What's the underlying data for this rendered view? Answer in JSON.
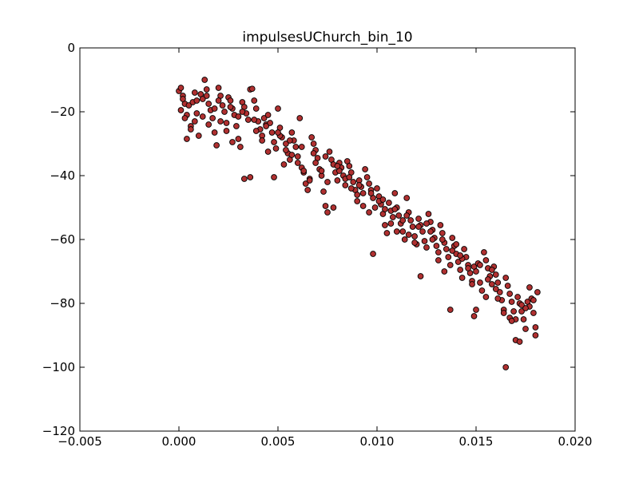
{
  "chart_data": {
    "type": "scatter",
    "title": "impulsesUChurch_bin_10",
    "xlabel": "",
    "ylabel": "",
    "xlim": [
      -0.005,
      0.02
    ],
    "ylim": [
      -120,
      0
    ],
    "xticks": [
      -0.005,
      0.0,
      0.005,
      0.01,
      0.015,
      0.02
    ],
    "xtick_labels": [
      "−0.005",
      "0.000",
      "0.005",
      "0.010",
      "0.015",
      "0.020"
    ],
    "yticks": [
      0,
      -20,
      -40,
      -60,
      -80,
      -100,
      -120
    ],
    "ytick_labels": [
      "0",
      "−20",
      "−40",
      "−60",
      "−80",
      "−100",
      "−120"
    ],
    "grid": false,
    "legend": "none",
    "marker_color": "#b03030",
    "marker_edge": "#000000",
    "series": [
      {
        "points": [
          [
            0.0,
            -13.5
          ],
          [
            0.0001,
            -12.5
          ],
          [
            0.0002,
            -15.0
          ],
          [
            0.0003,
            -17.5
          ],
          [
            0.0001,
            -19.5
          ],
          [
            0.0004,
            -21.0
          ],
          [
            0.0005,
            -18.0
          ],
          [
            0.0006,
            -24.5
          ],
          [
            0.0004,
            -28.5
          ],
          [
            0.0008,
            -23.0
          ],
          [
            0.0009,
            -20.5
          ],
          [
            0.001,
            -27.5
          ],
          [
            0.0007,
            -17.0
          ],
          [
            0.0011,
            -14.5
          ],
          [
            0.0012,
            -16.0
          ],
          [
            0.0013,
            -10.0
          ],
          [
            0.0014,
            -13.0
          ],
          [
            0.0015,
            -17.5
          ],
          [
            0.0016,
            -19.5
          ],
          [
            0.0017,
            -22.0
          ],
          [
            0.0018,
            -26.5
          ],
          [
            0.0019,
            -30.5
          ],
          [
            0.002,
            -12.5
          ],
          [
            0.0021,
            -15.0
          ],
          [
            0.0022,
            -18.0
          ],
          [
            0.0023,
            -20.0
          ],
          [
            0.0024,
            -23.5
          ],
          [
            0.0025,
            -15.5
          ],
          [
            0.0026,
            -16.5
          ],
          [
            0.0027,
            -19.0
          ],
          [
            0.0028,
            -21.0
          ],
          [
            0.0029,
            -24.5
          ],
          [
            0.003,
            -28.5
          ],
          [
            0.0031,
            -31.0
          ],
          [
            0.0032,
            -17.0
          ],
          [
            0.0033,
            -18.5
          ],
          [
            0.0034,
            -20.5
          ],
          [
            0.0035,
            -22.5
          ],
          [
            0.0036,
            -13.0
          ],
          [
            0.0037,
            -12.8
          ],
          [
            0.0038,
            -16.5
          ],
          [
            0.0039,
            -19.0
          ],
          [
            0.004,
            -23.0
          ],
          [
            0.0041,
            -25.5
          ],
          [
            0.0042,
            -27.5
          ],
          [
            0.0043,
            -22.0
          ],
          [
            0.0044,
            -24.0
          ],
          [
            0.0045,
            -21.0
          ],
          [
            0.0046,
            -23.5
          ],
          [
            0.0047,
            -26.5
          ],
          [
            0.0048,
            -29.5
          ],
          [
            0.0049,
            -31.5
          ],
          [
            0.005,
            -19.0
          ],
          [
            0.0051,
            -25.0
          ],
          [
            0.0052,
            -28.0
          ],
          [
            0.0053,
            -36.5
          ],
          [
            0.0054,
            -30.0
          ],
          [
            0.0055,
            -33.0
          ],
          [
            0.0056,
            -35.0
          ],
          [
            0.0057,
            -26.5
          ],
          [
            0.0058,
            -29.0
          ],
          [
            0.0059,
            -31.0
          ],
          [
            0.006,
            -34.0
          ],
          [
            0.0061,
            -22.0
          ],
          [
            0.0062,
            -37.5
          ],
          [
            0.0063,
            -39.0
          ],
          [
            0.0064,
            -42.5
          ],
          [
            0.0065,
            -44.5
          ],
          [
            0.0066,
            -41.0
          ],
          [
            0.0067,
            -28.0
          ],
          [
            0.0068,
            -30.0
          ],
          [
            0.0069,
            -32.0
          ],
          [
            0.007,
            -34.5
          ],
          [
            0.0071,
            -38.0
          ],
          [
            0.0072,
            -40.0
          ],
          [
            0.0073,
            -45.0
          ],
          [
            0.0074,
            -49.5
          ],
          [
            0.0075,
            -51.5
          ],
          [
            0.0076,
            -32.5
          ],
          [
            0.0077,
            -35.0
          ],
          [
            0.0078,
            -36.5
          ],
          [
            0.0079,
            -39.0
          ],
          [
            0.008,
            -41.5
          ],
          [
            0.0081,
            -36.0
          ],
          [
            0.0082,
            -37.5
          ],
          [
            0.0083,
            -40.0
          ],
          [
            0.0084,
            -43.0
          ],
          [
            0.0085,
            -35.5
          ],
          [
            0.0086,
            -37.0
          ],
          [
            0.0087,
            -39.0
          ],
          [
            0.0088,
            -42.0
          ],
          [
            0.0089,
            -44.5
          ],
          [
            0.009,
            -48.0
          ],
          [
            0.0091,
            -41.5
          ],
          [
            0.0092,
            -43.5
          ],
          [
            0.0093,
            -45.5
          ],
          [
            0.0094,
            -38.0
          ],
          [
            0.0095,
            -40.5
          ],
          [
            0.0096,
            -42.5
          ],
          [
            0.0097,
            -44.5
          ],
          [
            0.0098,
            -47.0
          ],
          [
            0.0099,
            -50.0
          ],
          [
            0.01,
            -44.0
          ],
          [
            0.0101,
            -46.5
          ],
          [
            0.0102,
            -49.0
          ],
          [
            0.0103,
            -52.0
          ],
          [
            0.0104,
            -55.5
          ],
          [
            0.0105,
            -58.0
          ],
          [
            0.0106,
            -48.5
          ],
          [
            0.0107,
            -51.0
          ],
          [
            0.0108,
            -53.0
          ],
          [
            0.0109,
            -45.5
          ],
          [
            0.011,
            -50.0
          ],
          [
            0.0111,
            -52.5
          ],
          [
            0.0112,
            -55.0
          ],
          [
            0.0113,
            -57.5
          ],
          [
            0.0114,
            -60.0
          ],
          [
            0.0115,
            -47.0
          ],
          [
            0.0116,
            -51.5
          ],
          [
            0.0117,
            -54.0
          ],
          [
            0.0118,
            -56.0
          ],
          [
            0.0119,
            -59.0
          ],
          [
            0.012,
            -61.5
          ],
          [
            0.0121,
            -53.5
          ],
          [
            0.0122,
            -55.5
          ],
          [
            0.0123,
            -57.5
          ],
          [
            0.0124,
            -60.5
          ],
          [
            0.0125,
            -62.5
          ],
          [
            0.0126,
            -52.0
          ],
          [
            0.0127,
            -54.5
          ],
          [
            0.0128,
            -57.0
          ],
          [
            0.0129,
            -59.5
          ],
          [
            0.013,
            -62.0
          ],
          [
            0.0131,
            -64.0
          ],
          [
            0.0132,
            -55.5
          ],
          [
            0.0133,
            -58.0
          ],
          [
            0.0134,
            -61.0
          ],
          [
            0.0135,
            -63.0
          ],
          [
            0.0136,
            -65.5
          ],
          [
            0.0137,
            -68.0
          ],
          [
            0.0138,
            -59.5
          ],
          [
            0.0139,
            -62.0
          ],
          [
            0.014,
            -64.5
          ],
          [
            0.0141,
            -67.0
          ],
          [
            0.0142,
            -69.5
          ],
          [
            0.0143,
            -72.0
          ],
          [
            0.0144,
            -63.0
          ],
          [
            0.0145,
            -65.5
          ],
          [
            0.0146,
            -68.0
          ],
          [
            0.0147,
            -70.5
          ],
          [
            0.0148,
            -73.0
          ],
          [
            0.0149,
            -68.5
          ],
          [
            0.015,
            -70.0
          ],
          [
            0.0151,
            -67.5
          ],
          [
            0.0152,
            -73.5
          ],
          [
            0.0153,
            -76.0
          ],
          [
            0.0154,
            -64.0
          ],
          [
            0.0155,
            -66.5
          ],
          [
            0.0156,
            -69.0
          ],
          [
            0.0157,
            -71.5
          ],
          [
            0.0158,
            -74.0
          ],
          [
            0.0159,
            -68.5
          ],
          [
            0.016,
            -71.0
          ],
          [
            0.0161,
            -73.5
          ],
          [
            0.0162,
            -76.5
          ],
          [
            0.0163,
            -79.0
          ],
          [
            0.0164,
            -82.0
          ],
          [
            0.0165,
            -72.0
          ],
          [
            0.0166,
            -74.5
          ],
          [
            0.0167,
            -77.0
          ],
          [
            0.0168,
            -79.5
          ],
          [
            0.0169,
            -82.5
          ],
          [
            0.017,
            -85.0
          ],
          [
            0.0171,
            -78.0
          ],
          [
            0.0172,
            -80.0
          ],
          [
            0.0173,
            -82.5
          ],
          [
            0.0174,
            -85.0
          ],
          [
            0.0175,
            -88.0
          ],
          [
            0.0176,
            -79.5
          ],
          [
            0.0177,
            -81.0
          ],
          [
            0.0178,
            -78.5
          ],
          [
            0.0179,
            -83.0
          ],
          [
            0.018,
            -87.5
          ],
          [
            0.0181,
            -76.5
          ],
          [
            0.0003,
            -22.0
          ],
          [
            0.0006,
            -25.5
          ],
          [
            0.0009,
            -16.5
          ],
          [
            0.0012,
            -21.5
          ],
          [
            0.0015,
            -24.0
          ],
          [
            0.0018,
            -19.0
          ],
          [
            0.0021,
            -23.0
          ],
          [
            0.0024,
            -26.0
          ],
          [
            0.0027,
            -29.5
          ],
          [
            0.003,
            -21.5
          ],
          [
            0.0033,
            -41.0
          ],
          [
            0.0036,
            -40.5
          ],
          [
            0.0039,
            -26.0
          ],
          [
            0.0042,
            -29.0
          ],
          [
            0.0045,
            -32.5
          ],
          [
            0.0048,
            -40.5
          ],
          [
            0.0051,
            -27.5
          ],
          [
            0.0054,
            -32.0
          ],
          [
            0.0057,
            -33.5
          ],
          [
            0.006,
            -36.0
          ],
          [
            0.0063,
            -38.5
          ],
          [
            0.0066,
            -41.5
          ],
          [
            0.0069,
            -36.0
          ],
          [
            0.0072,
            -38.5
          ],
          [
            0.0075,
            -42.0
          ],
          [
            0.0078,
            -50.0
          ],
          [
            0.0081,
            -38.5
          ],
          [
            0.0084,
            -41.0
          ],
          [
            0.0087,
            -44.0
          ],
          [
            0.009,
            -46.0
          ],
          [
            0.0093,
            -49.5
          ],
          [
            0.0096,
            -51.5
          ],
          [
            0.0098,
            -64.5
          ],
          [
            0.0101,
            -48.0
          ],
          [
            0.0104,
            -50.5
          ],
          [
            0.0107,
            -55.0
          ],
          [
            0.011,
            -57.5
          ],
          [
            0.0113,
            -54.0
          ],
          [
            0.0116,
            -58.5
          ],
          [
            0.0119,
            -61.0
          ],
          [
            0.0122,
            -71.5
          ],
          [
            0.0125,
            -55.0
          ],
          [
            0.0128,
            -60.0
          ],
          [
            0.0131,
            -66.5
          ],
          [
            0.0134,
            -70.0
          ],
          [
            0.0137,
            -82.0
          ],
          [
            0.014,
            -61.5
          ],
          [
            0.0143,
            -66.0
          ],
          [
            0.0146,
            -69.0
          ],
          [
            0.0149,
            -84.0
          ],
          [
            0.015,
            -82.0
          ],
          [
            0.0155,
            -78.0
          ],
          [
            0.0158,
            -69.5
          ],
          [
            0.0161,
            -78.5
          ],
          [
            0.0164,
            -83.0
          ],
          [
            0.0165,
            -100.0
          ],
          [
            0.0167,
            -84.5
          ],
          [
            0.017,
            -91.5
          ],
          [
            0.0172,
            -92.0
          ],
          [
            0.0175,
            -81.5
          ],
          [
            0.0177,
            -75.0
          ],
          [
            0.0179,
            -79.0
          ],
          [
            0.018,
            -90.0
          ],
          [
            0.0173,
            -80.5
          ],
          [
            0.0168,
            -85.5
          ],
          [
            0.016,
            -75.5
          ],
          [
            0.0156,
            -72.5
          ],
          [
            0.0152,
            -68.0
          ],
          [
            0.0148,
            -74.0
          ],
          [
            0.0142,
            -65.0
          ],
          [
            0.0138,
            -63.5
          ],
          [
            0.0133,
            -60.0
          ],
          [
            0.0127,
            -57.5
          ],
          [
            0.0121,
            -56.0
          ],
          [
            0.0115,
            -52.5
          ],
          [
            0.0109,
            -50.5
          ],
          [
            0.0103,
            -47.5
          ],
          [
            0.0097,
            -45.5
          ],
          [
            0.0091,
            -43.0
          ],
          [
            0.0086,
            -40.5
          ],
          [
            0.008,
            -37.0
          ],
          [
            0.0074,
            -34.0
          ],
          [
            0.0068,
            -33.0
          ],
          [
            0.0062,
            -31.0
          ],
          [
            0.0056,
            -29.0
          ],
          [
            0.005,
            -26.5
          ],
          [
            0.0044,
            -24.5
          ],
          [
            0.0038,
            -22.5
          ],
          [
            0.0032,
            -20.0
          ],
          [
            0.0026,
            -18.5
          ],
          [
            0.002,
            -16.5
          ],
          [
            0.0014,
            -15.0
          ],
          [
            0.0008,
            -14.0
          ],
          [
            0.0002,
            -16.0
          ]
        ]
      }
    ]
  }
}
